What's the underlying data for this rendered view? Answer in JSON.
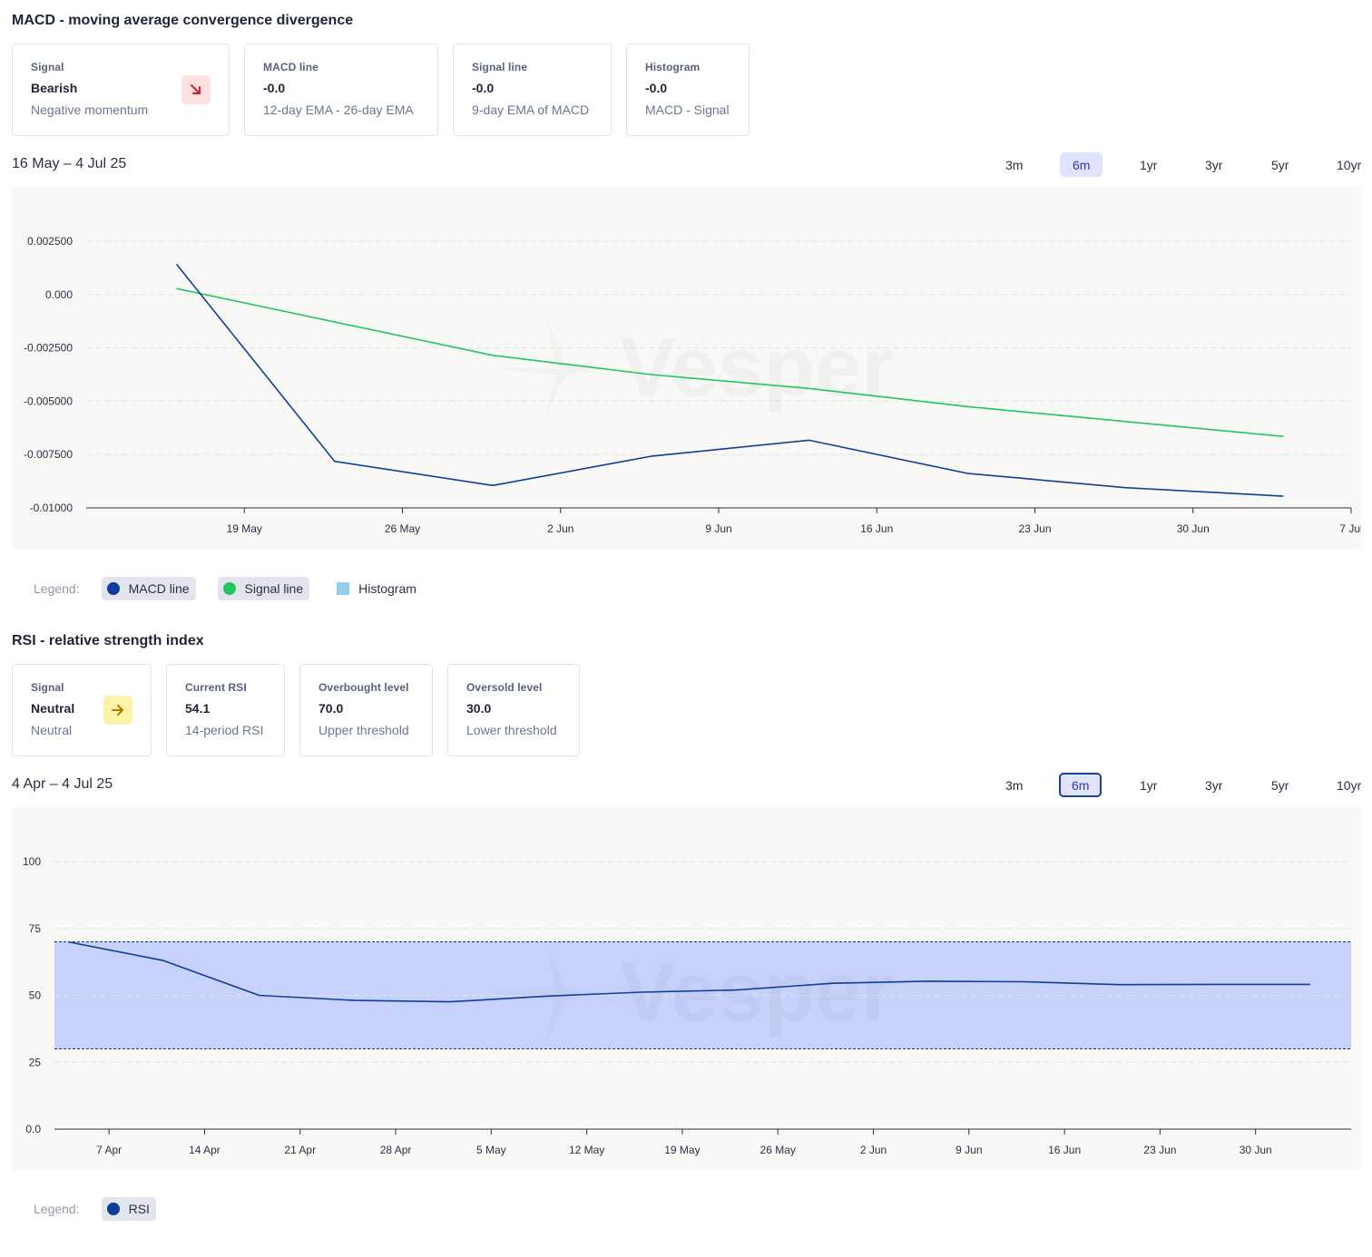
{
  "macd": {
    "title": "MACD - moving average convergence divergence",
    "cards": [
      {
        "label": "Signal",
        "value": "Bearish",
        "sub": "Negative momentum",
        "icon": "arrow-down-right-icon"
      },
      {
        "label": "MACD line",
        "value": "-0.0",
        "sub": "12-day EMA - 26-day EMA"
      },
      {
        "label": "Signal line",
        "value": "-0.0",
        "sub": "9-day EMA of MACD"
      },
      {
        "label": "Histogram",
        "value": "-0.0",
        "sub": "MACD - Signal"
      }
    ],
    "date_range": "16 May – 4 Jul 25",
    "ranges": [
      "3m",
      "6m",
      "1yr",
      "3yr",
      "5yr",
      "10yr"
    ],
    "active_range": "6m",
    "legend_title": "Legend:",
    "legend": [
      {
        "label": "MACD line",
        "color": "#0f3d9c"
      },
      {
        "label": "Signal line",
        "color": "#22c55e"
      },
      {
        "label": "Histogram",
        "color": "#93cdee"
      }
    ]
  },
  "rsi": {
    "title": "RSI - relative strength index",
    "cards": [
      {
        "label": "Signal",
        "value": "Neutral",
        "sub": "Neutral",
        "icon": "arrow-right-icon"
      },
      {
        "label": "Current RSI",
        "value": "54.1",
        "sub": "14-period RSI"
      },
      {
        "label": "Overbought level",
        "value": "70.0",
        "sub": "Upper threshold"
      },
      {
        "label": "Oversold level",
        "value": "30.0",
        "sub": "Lower threshold"
      }
    ],
    "date_range": "4 Apr – 4 Jul 25",
    "ranges": [
      "3m",
      "6m",
      "1yr",
      "3yr",
      "5yr",
      "10yr"
    ],
    "active_range": "6m",
    "legend_title": "Legend:",
    "legend": [
      {
        "label": "RSI",
        "color": "#0f3d9c"
      }
    ]
  },
  "watermark": "Vesper",
  "chart_data": [
    {
      "type": "line",
      "title": "MACD - moving average convergence divergence",
      "xlabel": "",
      "ylabel": "",
      "x_ticks": [
        "19 May",
        "26 May",
        "2 Jun",
        "9 Jun",
        "16 Jun",
        "23 Jun",
        "30 Jun",
        "7 Jul"
      ],
      "y_ticks": [
        "0.002500",
        "0.000",
        "-0.002500",
        "-0.005000",
        "-0.007500",
        "-0.01000"
      ],
      "ylim": [
        -0.01,
        0.0025
      ],
      "xlim": [
        "2025-05-12",
        "2025-07-07"
      ],
      "grid": true,
      "series": [
        {
          "name": "MACD line",
          "color": "#0f3d9c",
          "x": [
            "2025-05-16",
            "2025-05-23",
            "2025-05-30",
            "2025-06-06",
            "2025-06-13",
            "2025-06-20",
            "2025-06-27",
            "2025-07-04"
          ],
          "y": [
            0.00142,
            -0.00782,
            -0.00895,
            -0.00758,
            -0.00683,
            -0.00838,
            -0.00905,
            -0.00945
          ]
        },
        {
          "name": "Signal line",
          "color": "#22c55e",
          "x": [
            "2025-05-16",
            "2025-05-30",
            "2025-06-06",
            "2025-06-13",
            "2025-06-20",
            "2025-07-04"
          ],
          "y": [
            0.00028,
            -0.00285,
            -0.00375,
            -0.0044,
            -0.00525,
            -0.00665
          ]
        },
        {
          "name": "Histogram",
          "color": "#93cdee",
          "x": [],
          "y": []
        }
      ]
    },
    {
      "type": "line",
      "title": "RSI - relative strength index",
      "xlabel": "",
      "ylabel": "",
      "x_ticks": [
        "7 Apr",
        "14 Apr",
        "21 Apr",
        "28 Apr",
        "5 May",
        "12 May",
        "19 May",
        "26 May",
        "2 Jun",
        "9 Jun",
        "16 Jun",
        "23 Jun",
        "30 Jun"
      ],
      "y_ticks": [
        "100",
        "75",
        "50",
        "25",
        "0.0"
      ],
      "ylim": [
        0,
        100
      ],
      "xlim": [
        "2025-04-03",
        "2025-07-07"
      ],
      "grid": true,
      "bands": {
        "overbought": 70,
        "oversold": 30
      },
      "series": [
        {
          "name": "RSI",
          "color": "#0f3d9c",
          "x": [
            "2025-04-04",
            "2025-04-11",
            "2025-04-18",
            "2025-04-25",
            "2025-05-02",
            "2025-05-09",
            "2025-05-16",
            "2025-05-23",
            "2025-05-30",
            "2025-06-06",
            "2025-06-13",
            "2025-06-20",
            "2025-06-27",
            "2025-07-04"
          ],
          "y": [
            70,
            63,
            50,
            48.1,
            47.6,
            49.7,
            51.2,
            52,
            54.5,
            55.3,
            55.1,
            54,
            54.1,
            54.1
          ]
        }
      ]
    }
  ]
}
